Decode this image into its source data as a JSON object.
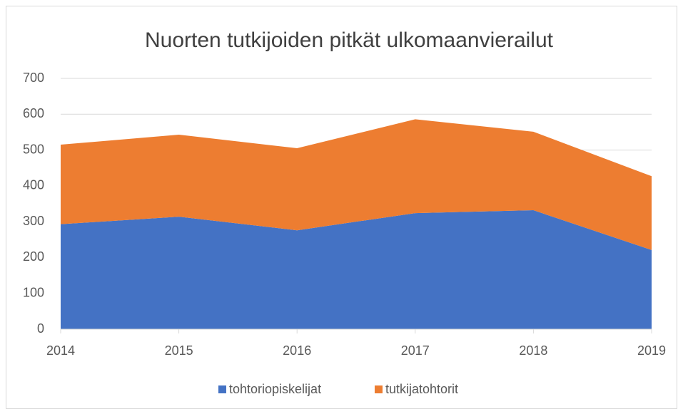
{
  "chart_data": {
    "type": "area",
    "stacked": true,
    "title": "Nuorten tutkijoiden pitkät ulkomaanvierailut",
    "categories": [
      "2014",
      "2015",
      "2016",
      "2017",
      "2018",
      "2019"
    ],
    "series": [
      {
        "name": "tohtoriopiskelijat",
        "color": "#4472c4",
        "values": [
          293,
          314,
          276,
          324,
          332,
          221
        ]
      },
      {
        "name": "tutkijatohtorit",
        "color": "#ed7d31",
        "values": [
          222,
          229,
          229,
          262,
          219,
          206
        ]
      }
    ],
    "ylim": [
      0,
      700
    ],
    "yticks": [
      0,
      100,
      200,
      300,
      400,
      500,
      600,
      700
    ],
    "grid": true,
    "legend": "bottom"
  }
}
